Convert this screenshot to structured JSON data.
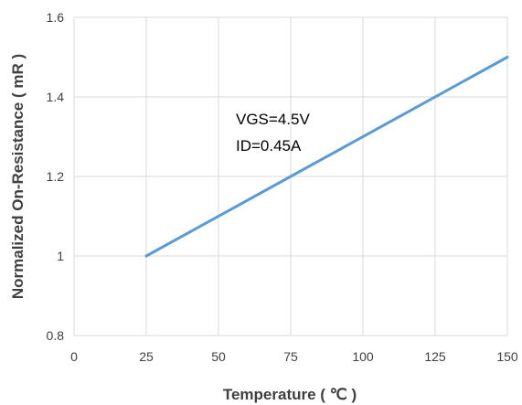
{
  "chart_data": {
    "type": "line",
    "title": "",
    "xlabel": "Temperature ( ℃ )",
    "ylabel": "Normalized On-Resistance ( mR )",
    "xlim": [
      0,
      150
    ],
    "ylim": [
      0.8,
      1.6
    ],
    "xticks": [
      "0",
      "25",
      "50",
      "75",
      "100",
      "125",
      "150"
    ],
    "yticks": [
      "0.8",
      "1",
      "1.2",
      "1.4",
      "1.6"
    ],
    "grid": true,
    "legend": "none",
    "series": [
      {
        "color": "#5b9bd5",
        "x": [
          25,
          150
        ],
        "y": [
          1.0,
          1.5
        ]
      }
    ],
    "annotations": [
      "VGS=4.5V",
      "ID=0.45A"
    ]
  }
}
